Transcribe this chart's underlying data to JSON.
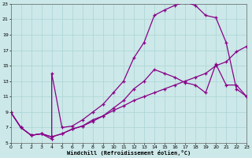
{
  "xlabel": "Windchill (Refroidissement éolien,°C)",
  "background_color": "#cce8e8",
  "line_color": "#880088",
  "xmin": 0,
  "xmax": 23,
  "ymin": 5,
  "ymax": 23,
  "yticks": [
    5,
    7,
    9,
    11,
    13,
    15,
    17,
    19,
    21,
    23
  ],
  "xticks": [
    0,
    1,
    2,
    3,
    4,
    5,
    6,
    7,
    8,
    9,
    10,
    11,
    12,
    13,
    14,
    15,
    16,
    17,
    18,
    19,
    20,
    21,
    22,
    23
  ],
  "line1_x": [
    0,
    1,
    2,
    3,
    4,
    4,
    5,
    6,
    7,
    8,
    9,
    10,
    11,
    12,
    13,
    14,
    15,
    16,
    17,
    18,
    19,
    20,
    21,
    22,
    23
  ],
  "line1_y": [
    9,
    7,
    6,
    6.2,
    5.5,
    14,
    7,
    7.2,
    8,
    9,
    10,
    11.5,
    13,
    16,
    18,
    21.5,
    22.2,
    22.8,
    23.2,
    22.8,
    21.5,
    21.2,
    18,
    12,
    11
  ],
  "line2_x": [
    0,
    1,
    2,
    3,
    4,
    5,
    6,
    7,
    8,
    9,
    10,
    11,
    12,
    13,
    14,
    15,
    16,
    17,
    18,
    19,
    20,
    21,
    22,
    23
  ],
  "line2_y": [
    9,
    7,
    6,
    6.2,
    5.8,
    6.2,
    6.8,
    7.2,
    8,
    8.5,
    9.5,
    10.5,
    12,
    13,
    14.5,
    14,
    13.5,
    12.8,
    12.5,
    11.5,
    15.2,
    12.5,
    12.5,
    11
  ],
  "line3_x": [
    0,
    1,
    2,
    3,
    4,
    5,
    6,
    7,
    8,
    9,
    10,
    11,
    12,
    13,
    14,
    15,
    16,
    17,
    18,
    19,
    20,
    21,
    22,
    23
  ],
  "line3_y": [
    9,
    7,
    6,
    6.2,
    5.8,
    6.2,
    6.8,
    7.2,
    7.8,
    8.5,
    9.2,
    9.8,
    10.5,
    11,
    11.5,
    12,
    12.5,
    13,
    13.5,
    14,
    15,
    15.5,
    16.8,
    17.5
  ]
}
